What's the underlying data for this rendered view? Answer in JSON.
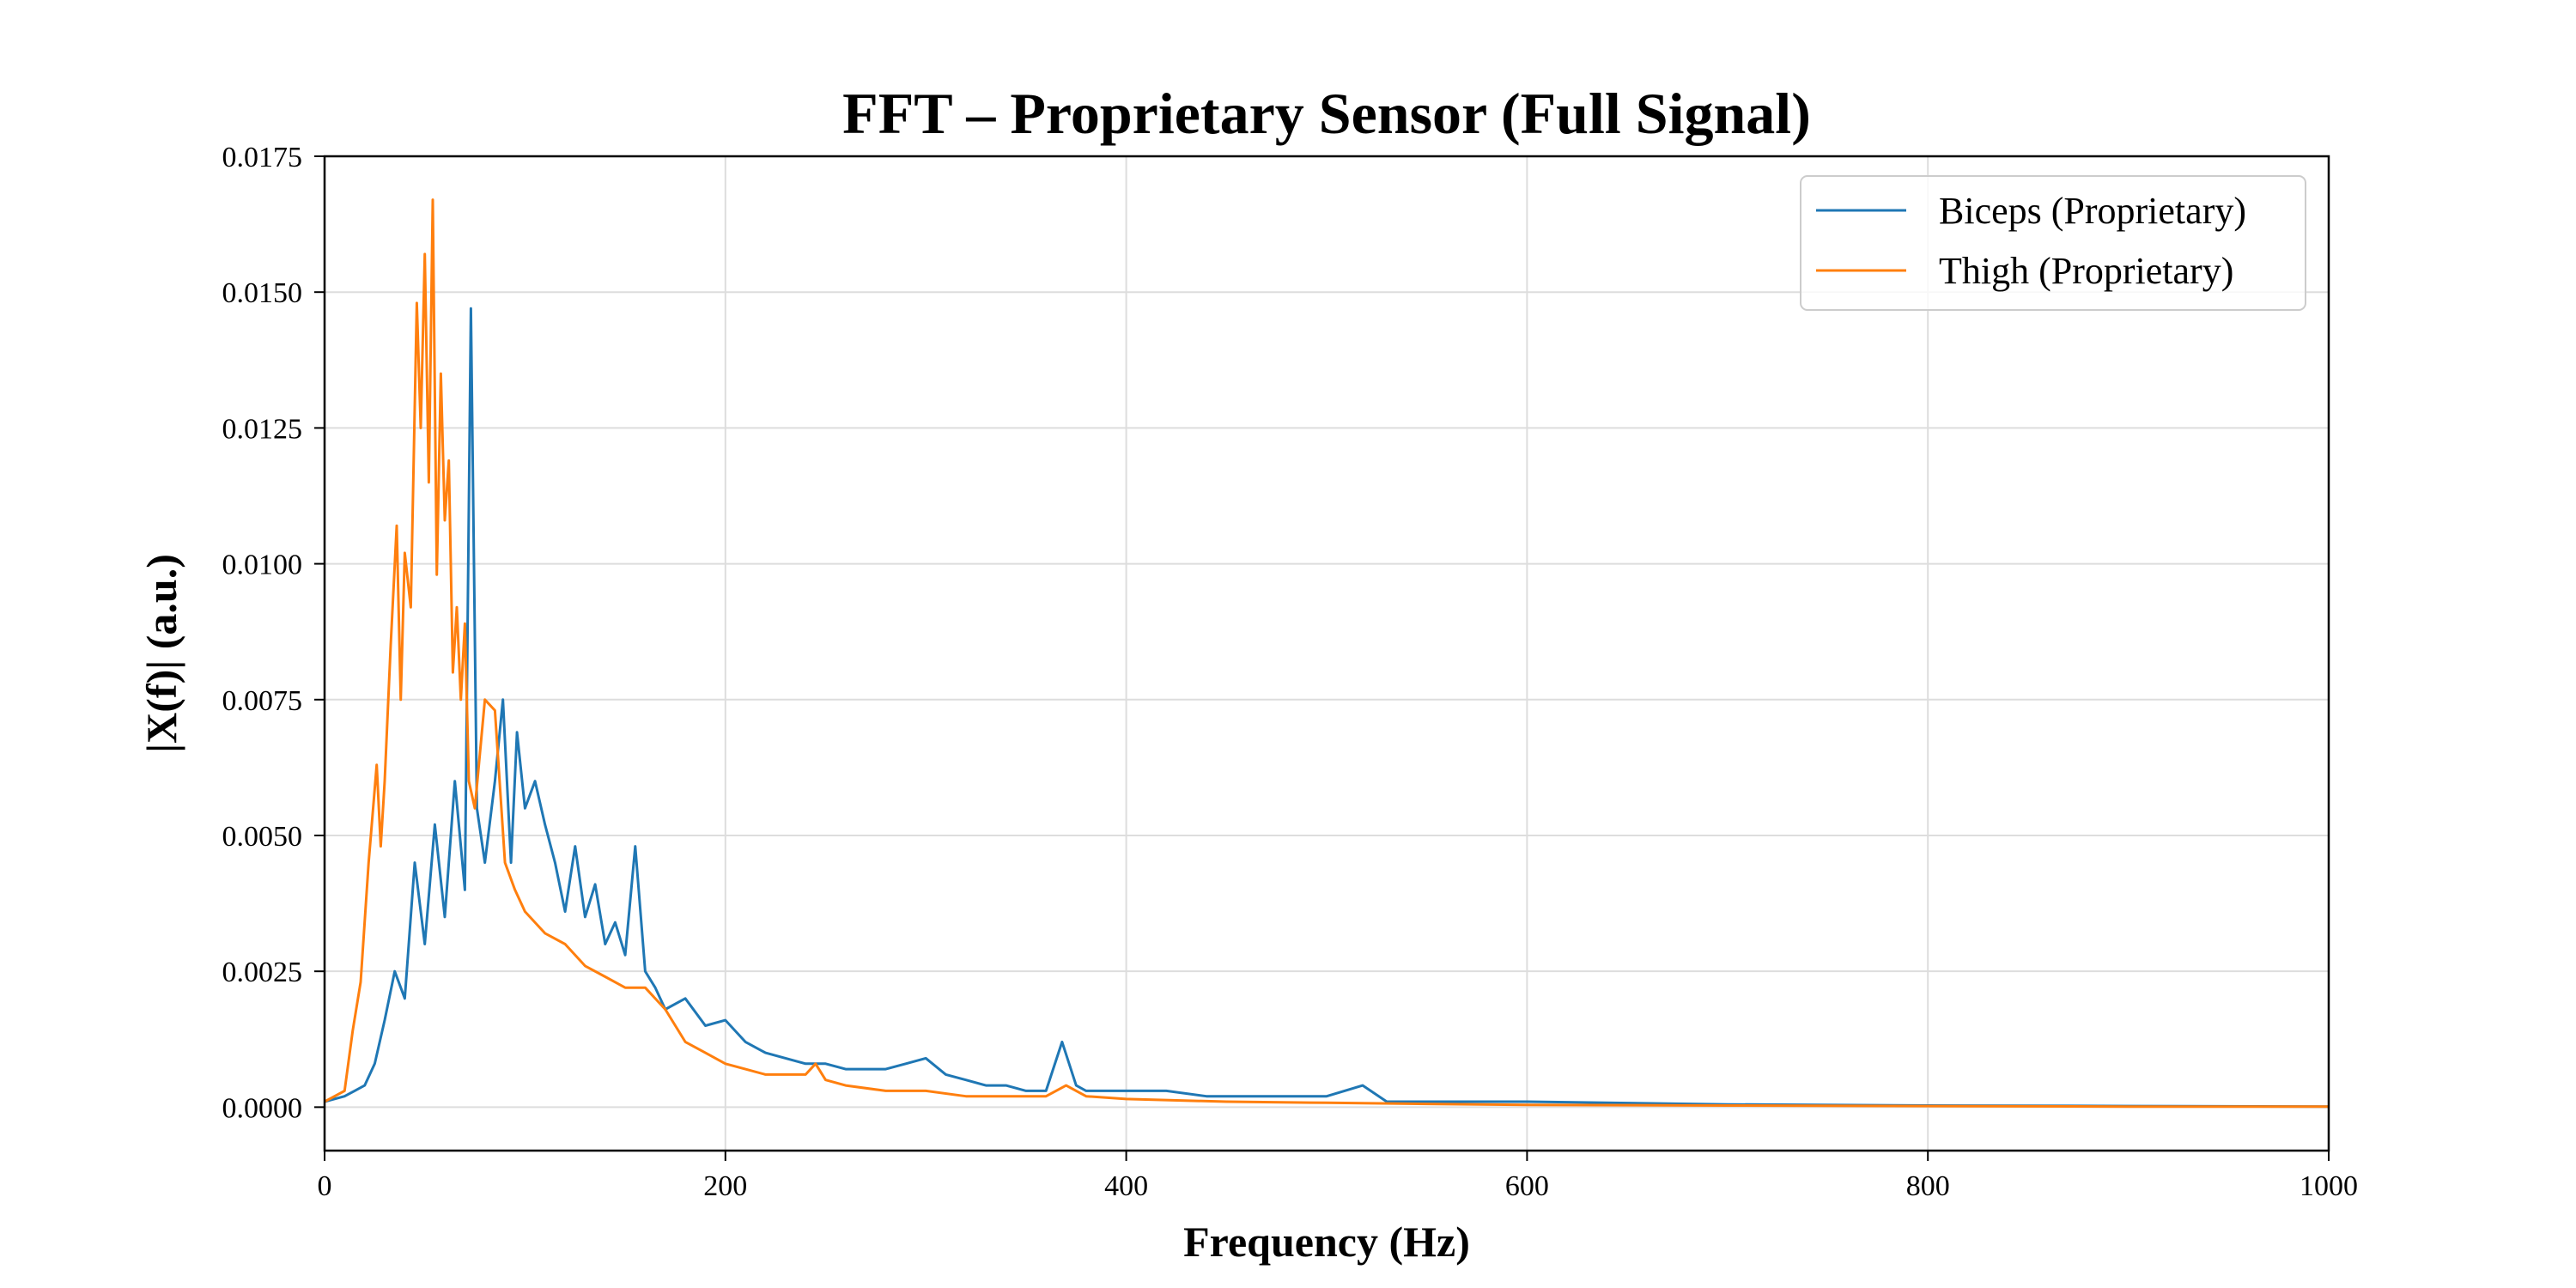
{
  "chart_data": {
    "type": "line",
    "title": "FFT – Proprietary Sensor (Full Signal)",
    "xlabel": "Frequency (Hz)",
    "ylabel": "|X(f)| (a.u.)",
    "xlim": [
      0,
      1000
    ],
    "ylim": [
      -0.0008,
      0.0175
    ],
    "x_ticks": [
      "0",
      "200",
      "400",
      "600",
      "800",
      "1000"
    ],
    "y_ticks": [
      "0.0000",
      "0.0025",
      "0.0050",
      "0.0075",
      "0.0100",
      "0.0125",
      "0.0150",
      "0.0175"
    ],
    "grid": true,
    "legend_position": "top-right",
    "series": [
      {
        "name": "Biceps (Proprietary)",
        "color": "#1f77b4",
        "x": [
          0,
          10,
          15,
          20,
          25,
          30,
          35,
          40,
          45,
          50,
          55,
          60,
          65,
          70,
          73,
          76,
          80,
          85,
          89,
          93,
          96,
          100,
          105,
          110,
          115,
          120,
          125,
          130,
          135,
          140,
          145,
          150,
          155,
          160,
          165,
          170,
          180,
          190,
          200,
          210,
          220,
          230,
          240,
          250,
          260,
          270,
          280,
          290,
          300,
          310,
          320,
          330,
          340,
          350,
          360,
          368,
          375,
          380,
          400,
          420,
          440,
          460,
          480,
          500,
          518,
          530,
          560,
          600,
          700,
          800,
          900,
          1000
        ],
        "y": [
          0.0001,
          0.0002,
          0.0003,
          0.0004,
          0.0008,
          0.0016,
          0.0025,
          0.002,
          0.0045,
          0.003,
          0.0052,
          0.0035,
          0.006,
          0.004,
          0.0147,
          0.0055,
          0.0045,
          0.006,
          0.0075,
          0.0045,
          0.0069,
          0.0055,
          0.006,
          0.0052,
          0.0045,
          0.0036,
          0.0048,
          0.0035,
          0.0041,
          0.003,
          0.0034,
          0.0028,
          0.0048,
          0.0025,
          0.0022,
          0.0018,
          0.002,
          0.0015,
          0.0016,
          0.0012,
          0.001,
          0.0009,
          0.0008,
          0.0008,
          0.0007,
          0.0007,
          0.0007,
          0.0008,
          0.0009,
          0.0006,
          0.0005,
          0.0004,
          0.0004,
          0.0003,
          0.0003,
          0.0012,
          0.0004,
          0.0003,
          0.0003,
          0.0003,
          0.0002,
          0.0002,
          0.0002,
          0.0002,
          0.0004,
          0.0001,
          0.0001,
          0.0001,
          5e-05,
          3e-05,
          2e-05,
          1e-05
        ]
      },
      {
        "name": "Thigh (Proprietary)",
        "color": "#ff7f0e",
        "x": [
          0,
          10,
          14,
          18,
          22,
          26,
          28,
          30,
          33,
          36,
          38,
          40,
          43,
          46,
          48,
          50,
          52,
          54,
          56,
          58,
          60,
          62,
          64,
          66,
          68,
          70,
          72,
          75,
          80,
          85,
          90,
          95,
          100,
          110,
          120,
          130,
          140,
          150,
          160,
          170,
          180,
          190,
          200,
          210,
          220,
          230,
          240,
          245,
          250,
          260,
          280,
          300,
          320,
          340,
          360,
          370,
          380,
          400,
          450,
          500,
          550,
          600,
          700,
          800,
          900,
          1000
        ],
        "y": [
          0.0001,
          0.0003,
          0.0014,
          0.0023,
          0.0045,
          0.0063,
          0.0048,
          0.006,
          0.0085,
          0.0107,
          0.0075,
          0.0102,
          0.0092,
          0.0148,
          0.0125,
          0.0157,
          0.0115,
          0.0167,
          0.0098,
          0.0135,
          0.0108,
          0.0119,
          0.008,
          0.0092,
          0.0075,
          0.0089,
          0.006,
          0.0055,
          0.0075,
          0.0073,
          0.0045,
          0.004,
          0.0036,
          0.0032,
          0.003,
          0.0026,
          0.0024,
          0.0022,
          0.0022,
          0.0018,
          0.0012,
          0.001,
          0.0008,
          0.0007,
          0.0006,
          0.0006,
          0.0006,
          0.0008,
          0.0005,
          0.0004,
          0.0003,
          0.0003,
          0.0002,
          0.0002,
          0.0002,
          0.0004,
          0.0002,
          0.00015,
          0.0001,
          8e-05,
          6e-05,
          4e-05,
          3e-05,
          2e-05,
          1e-05,
          1e-05
        ]
      }
    ]
  }
}
